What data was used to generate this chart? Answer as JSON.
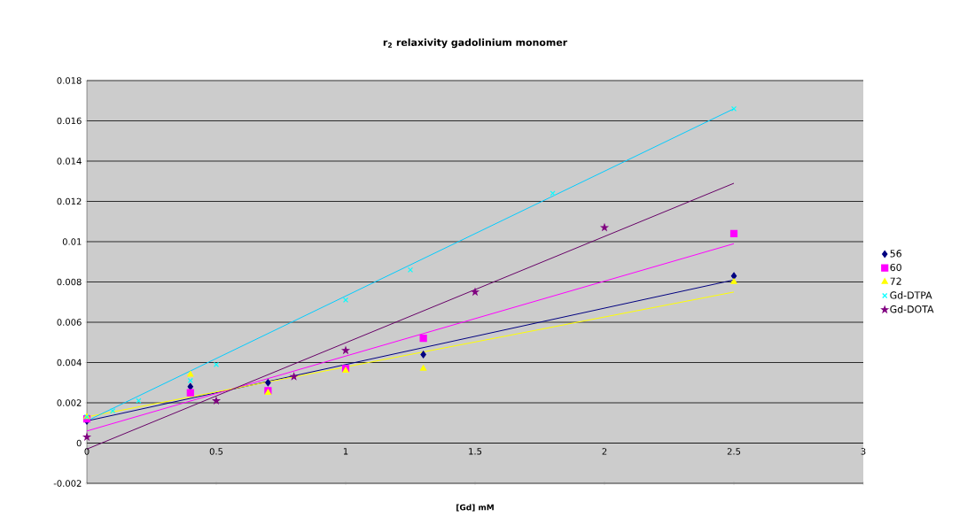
{
  "chart_data": {
    "type": "scatter",
    "title": "**r$_{2}$ relaxivity gadolinium monomer**",
    "xlabel": "[Gd] mM",
    "xlim": [
      0,
      3
    ],
    "xticks": [
      0,
      0.5,
      1,
      1.5,
      2,
      2.5,
      3
    ],
    "ylim": [
      -0.002,
      0.018
    ],
    "yticks": [
      -0.002,
      0,
      0.002,
      0.004,
      0.006,
      0.008,
      0.01,
      0.012,
      0.014,
      0.016,
      0.018
    ],
    "grid": "y",
    "legend": "right",
    "series": [
      {
        "name": "56",
        "color": "#000080",
        "marker": "diamond",
        "x": [
          0,
          0.4,
          0.7,
          1.0,
          1.3,
          2.5
        ],
        "values": [
          0.0011,
          0.0028,
          0.003,
          null,
          0.0044,
          0.0083
        ]
      },
      {
        "name": "60",
        "color": "#ff00ff",
        "marker": "square",
        "x": [
          0,
          0.4,
          0.7,
          1.0,
          1.3,
          2.5
        ],
        "values": [
          0.0012,
          0.0025,
          0.0026,
          0.0037,
          0.0052,
          0.0104
        ]
      },
      {
        "name": "72",
        "color": "#ffff00",
        "marker": "triangle",
        "x": [
          0,
          0.4,
          0.7,
          1.0,
          1.3,
          2.5
        ],
        "values": [
          0.0013,
          0.0034,
          0.0025,
          0.0036,
          0.0037,
          0.008
        ]
      },
      {
        "name": "Gd-DTPA",
        "color": "#00ffff",
        "marker": "cross",
        "x": [
          0,
          0.1,
          0.2,
          0.4,
          0.5,
          1.0,
          1.25,
          1.8,
          2.5
        ],
        "values": [
          0.0013,
          0.0016,
          0.0021,
          0.0031,
          0.0039,
          0.0071,
          0.0086,
          0.0124,
          0.0166
        ]
      },
      {
        "name": "Gd-DOTA",
        "color": "#800080",
        "marker": "star",
        "x": [
          0,
          0.5,
          0.8,
          1.0,
          1.5,
          2.0
        ],
        "values": [
          0.0003,
          0.0021,
          0.0033,
          0.0046,
          0.0075,
          0.0107
        ]
      },
      {
        "type": "line",
        "color": "#000080",
        "x": [
          0,
          2.5
        ],
        "values": [
          0.0011,
          0.0081
        ]
      },
      {
        "type": "line",
        "color": "#ff00ff",
        "x": [
          0,
          2.5
        ],
        "values": [
          0.0006,
          0.0099
        ]
      },
      {
        "type": "line",
        "color": "#ffff00",
        "x": [
          0,
          2.5
        ],
        "values": [
          0.0013,
          0.0075
        ]
      },
      {
        "type": "line",
        "color": "#00ccff",
        "x": [
          0,
          2.5
        ],
        "values": [
          0.0011,
          0.0166
        ]
      },
      {
        "type": "line",
        "color": "#660066",
        "x": [
          0,
          2.5
        ],
        "values": [
          -0.0003,
          0.0129
        ]
      }
    ]
  }
}
